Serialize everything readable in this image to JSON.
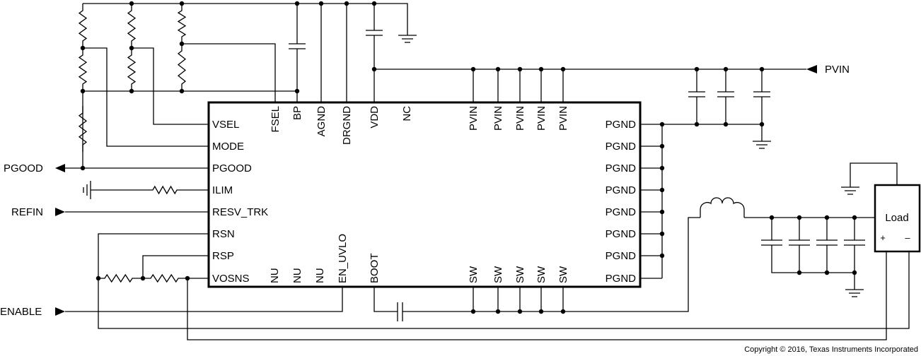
{
  "ic": {
    "left_pins": [
      "VSEL",
      "MODE",
      "PGOOD",
      "ILIM",
      "RESV_TRK",
      "RSN",
      "RSP",
      "VOSNS"
    ],
    "right_pins": [
      "PGND",
      "PGND",
      "PGND",
      "PGND",
      "PGND",
      "PGND",
      "PGND",
      "PGND"
    ],
    "top_pins": [
      "FSEL",
      "BP",
      "AGND",
      "DRGND",
      "VDD",
      "NC",
      "PVIN",
      "PVIN",
      "PVIN",
      "PVIN",
      "PVIN"
    ],
    "bottom_pins": [
      "NU",
      "NU",
      "NU",
      "EN_UVLO",
      "BOOT",
      "SW",
      "SW",
      "SW",
      "SW",
      "SW"
    ]
  },
  "ports": {
    "pgood": "PGOOD",
    "refin": "REFIN",
    "enable": "ENABLE",
    "pvin": "PVIN"
  },
  "load": {
    "label": "Load",
    "plus": "+",
    "minus": "–"
  },
  "copyright": "Copyright © 2016, Texas Instruments Incorporated"
}
